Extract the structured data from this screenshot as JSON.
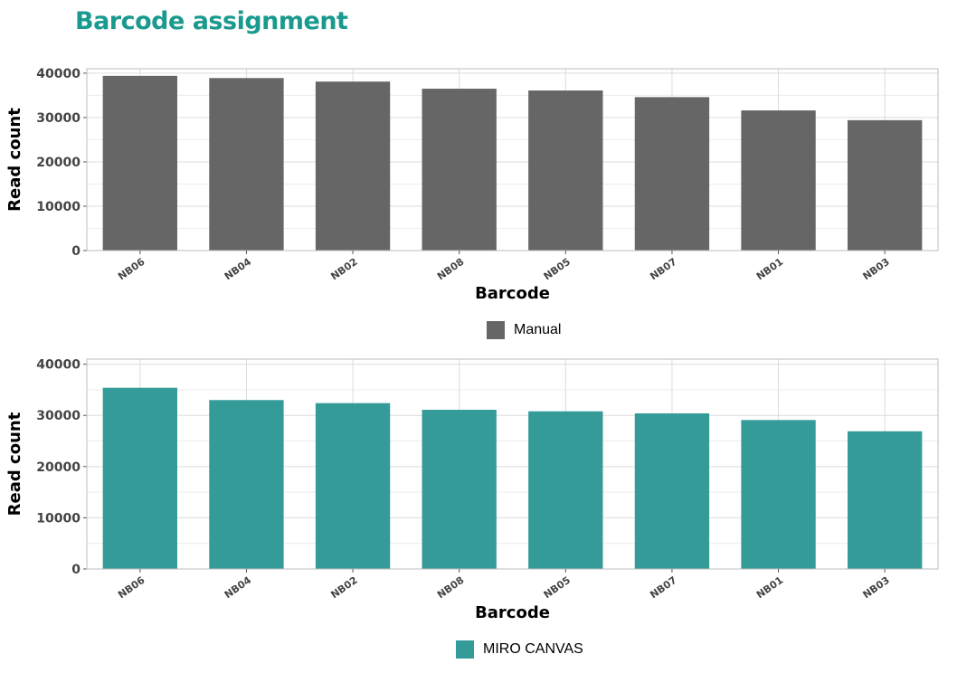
{
  "title": "Barcode assignment",
  "chart_data": [
    {
      "type": "bar",
      "categories": [
        "NB06",
        "NB04",
        "NB02",
        "NB08",
        "NB05",
        "NB07",
        "NB01",
        "NB03"
      ],
      "series": [
        {
          "name": "Manual",
          "values": [
            39400,
            38900,
            38100,
            36500,
            36100,
            34600,
            31600,
            29400
          ],
          "color": "#666666"
        }
      ],
      "xlabel": "Barcode",
      "ylabel": "Read count",
      "ylim": [
        0,
        41000
      ],
      "yticks": [
        0,
        10000,
        20000,
        30000,
        40000
      ],
      "grid": true,
      "legend": "bottom-center"
    },
    {
      "type": "bar",
      "categories": [
        "NB06",
        "NB04",
        "NB02",
        "NB08",
        "NB05",
        "NB07",
        "NB01",
        "NB03"
      ],
      "series": [
        {
          "name": "MIRO CANVAS",
          "values": [
            35400,
            33000,
            32400,
            31100,
            30800,
            30400,
            29100,
            26900
          ],
          "color": "#349b99"
        }
      ],
      "xlabel": "Barcode",
      "ylabel": "Read count",
      "ylim": [
        0,
        41000
      ],
      "yticks": [
        0,
        10000,
        20000,
        30000,
        40000
      ],
      "grid": true,
      "legend": "bottom-center"
    }
  ]
}
